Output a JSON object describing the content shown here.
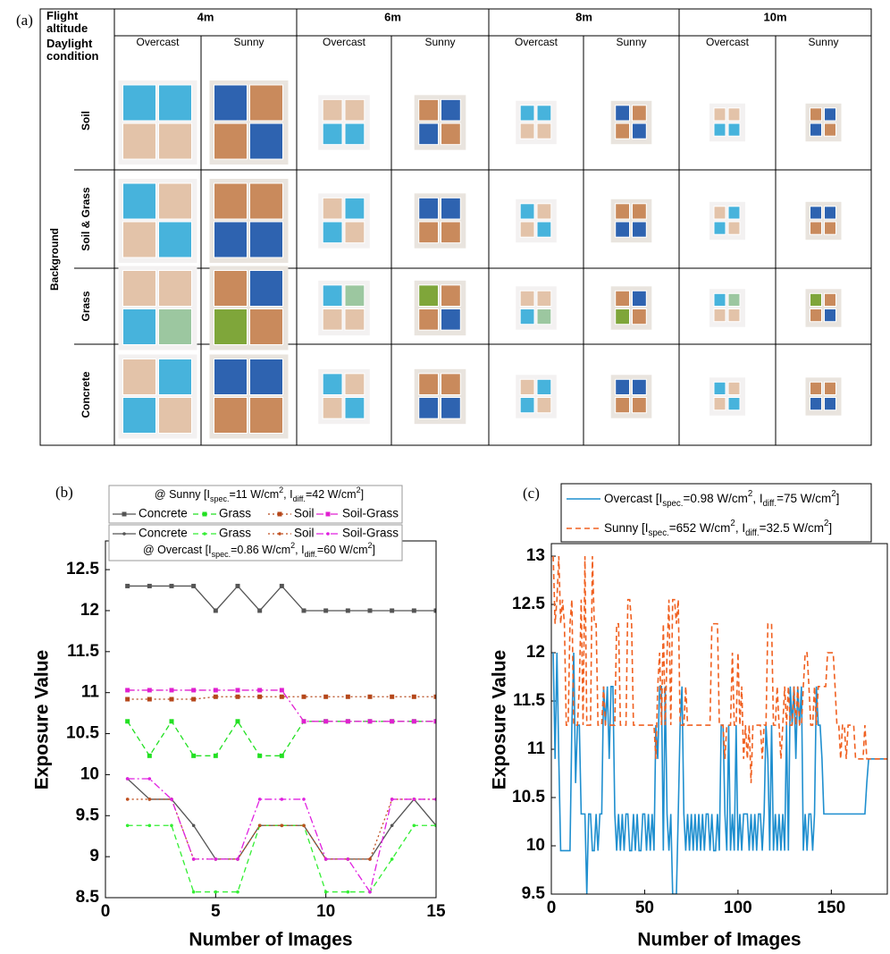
{
  "table": {
    "panel_label": "(a)",
    "altitude_header": "Flight altitude",
    "altitudes": [
      "4m",
      "6m",
      "8m",
      "10m"
    ],
    "condition_header": "Daylight condition",
    "conditions": [
      "Overcast",
      "Sunny",
      "Overcast",
      "Sunny",
      "Overcast",
      "Sunny",
      "Overcast",
      "Sunny"
    ],
    "background_label": "Background",
    "backgrounds": [
      "Soil",
      "Soil & Grass",
      "Grass",
      "Concrete"
    ]
  },
  "chart_data": [
    {
      "type": "line",
      "panel_label": "(b)",
      "x_label": "Number of Images",
      "y_label": "Exposure Value",
      "xlim": [
        0,
        15
      ],
      "xticks": [
        0,
        5,
        10,
        15
      ],
      "ylim": [
        8.5,
        12.85
      ],
      "yticks": [
        8.5,
        9,
        9.5,
        10,
        10.5,
        11,
        11.5,
        12,
        12.5
      ],
      "x": [
        1,
        2,
        3,
        4,
        5,
        6,
        7,
        8,
        9,
        10,
        11,
        12,
        13,
        14,
        15
      ],
      "series_groups": [
        {
          "title": [
            "@ Sunny [I",
            "spec.",
            "=11 W/cm",
            "2",
            ", I",
            "diff.",
            "=42 W/cm",
            "2",
            "]"
          ],
          "series": [
            {
              "name": "Concrete",
              "color": "#555555",
              "dash": "solid",
              "marker": "square",
              "values": [
                12.3,
                12.3,
                12.3,
                12.3,
                12,
                12.3,
                12,
                12.3,
                12,
                12,
                12,
                12,
                12,
                12,
                12
              ]
            },
            {
              "name": "Grass",
              "color": "#22e022",
              "dash": "dashed",
              "marker": "square",
              "values": [
                10.65,
                10.23,
                10.65,
                10.23,
                10.23,
                10.65,
                10.23,
                10.23,
                10.65,
                10.65,
                10.65,
                10.65,
                10.65,
                10.65,
                10.65
              ]
            },
            {
              "name": "Soil",
              "color": "#b5471a",
              "dash": "dotted",
              "marker": "square",
              "values": [
                10.92,
                10.92,
                10.92,
                10.92,
                10.95,
                10.95,
                10.95,
                10.95,
                10.95,
                10.95,
                10.95,
                10.95,
                10.95,
                10.95,
                10.95
              ]
            },
            {
              "name": "Soil-Grass",
              "color": "#e020d0",
              "dash": "dashdot",
              "marker": "square",
              "values": [
                11.03,
                11.03,
                11.03,
                11.03,
                11.03,
                11.03,
                11.03,
                11.03,
                10.65,
                10.65,
                10.65,
                10.65,
                10.65,
                10.65,
                10.65
              ]
            }
          ]
        },
        {
          "title": [
            "@ Overcast [I",
            "spec.",
            "=0.86 W/cm",
            "2",
            ", I",
            "diff.",
            "=60 W/cm",
            "2",
            "]"
          ],
          "series": [
            {
              "name": "Concrete",
              "color": "#555555",
              "dash": "solid",
              "marker": "dot",
              "values": [
                9.95,
                9.7,
                9.7,
                9.38,
                8.97,
                8.97,
                9.38,
                9.38,
                9.38,
                8.97,
                8.97,
                8.97,
                9.38,
                9.7,
                9.38
              ]
            },
            {
              "name": "Grass",
              "color": "#33ee33",
              "dash": "dashed",
              "marker": "dot",
              "values": [
                9.38,
                9.38,
                9.38,
                8.57,
                8.57,
                8.57,
                9.38,
                9.38,
                9.38,
                8.57,
                8.57,
                8.57,
                8.97,
                9.38,
                9.38
              ]
            },
            {
              "name": "Soil",
              "color": "#c05020",
              "dash": "dotted",
              "marker": "dot",
              "values": [
                9.7,
                9.7,
                9.7,
                8.97,
                8.97,
                8.97,
                9.38,
                9.38,
                9.38,
                8.97,
                8.97,
                8.97,
                9.7,
                9.7,
                9.7
              ]
            },
            {
              "name": "Soil-Grass",
              "color": "#e020e0",
              "dash": "dashdot",
              "marker": "dot",
              "values": [
                9.95,
                9.95,
                9.7,
                8.97,
                8.97,
                8.97,
                9.7,
                9.7,
                9.7,
                8.97,
                8.97,
                8.57,
                9.7,
                9.7,
                9.7
              ]
            }
          ]
        }
      ]
    },
    {
      "type": "line",
      "panel_label": "(c)",
      "x_label": "Number of Images",
      "y_label": "Exposure Value",
      "xlim": [
        0,
        180
      ],
      "xticks": [
        0,
        50,
        100,
        150
      ],
      "ylim": [
        9.5,
        13.13
      ],
      "yticks": [
        9.5,
        10,
        10.5,
        11,
        11.5,
        12,
        12.5,
        13
      ],
      "x": [
        1,
        2,
        3,
        4,
        5,
        6,
        7,
        8,
        9,
        10,
        11,
        12,
        13,
        14,
        15,
        16,
        17,
        18,
        19,
        20,
        21,
        22,
        23,
        24,
        25,
        26,
        27,
        28,
        29,
        30,
        31,
        32,
        33,
        34,
        35,
        36,
        37,
        38,
        39,
        40,
        41,
        42,
        43,
        44,
        45,
        46,
        47,
        48,
        49,
        50,
        51,
        52,
        53,
        54,
        55,
        56,
        57,
        58,
        59,
        60,
        61,
        62,
        63,
        64,
        65,
        66,
        67,
        68,
        69,
        70,
        71,
        72,
        73,
        74,
        75,
        76,
        77,
        78,
        79,
        80,
        81,
        82,
        83,
        84,
        85,
        86,
        87,
        88,
        89,
        90,
        91,
        92,
        93,
        94,
        95,
        96,
        97,
        98,
        99,
        100,
        101,
        102,
        103,
        104,
        105,
        106,
        107,
        108,
        109,
        110,
        111,
        112,
        113,
        114,
        115,
        116,
        117,
        118,
        119,
        120,
        121,
        122,
        123,
        124,
        125,
        126,
        127,
        128,
        129,
        130,
        131,
        132,
        133,
        134,
        135,
        136,
        137,
        138,
        139,
        140,
        141,
        142,
        143,
        144,
        145,
        146,
        147,
        148,
        149,
        150,
        151,
        152,
        153,
        154,
        155,
        156,
        157,
        158,
        159,
        160,
        161,
        162,
        163,
        164,
        165,
        166,
        167,
        168,
        169,
        170,
        171,
        172,
        173,
        174,
        175,
        176,
        177,
        178,
        179,
        180
      ],
      "series_groups": [
        {
          "series": [
            {
              "name": [
                "Overcast [I",
                "spec.",
                "=0.98 W/cm",
                "2",
                ", I",
                "diff.",
                "=75 W/cm",
                "2",
                "]"
              ],
              "color": "#1f8fcf",
              "dash": "solid",
              "values": [
                12,
                10.9,
                12,
                10.9,
                9.95,
                9.95,
                9.95,
                9.95,
                9.95,
                9.95,
                11.25,
                12,
                10.65,
                11.25,
                11.25,
                10.33,
                10.33,
                10.33,
                9.5,
                10.33,
                10.33,
                9.95,
                9.95,
                10.33,
                9.95,
                10.33,
                10.33,
                11.65,
                11.25,
                11.65,
                10.9,
                11.65,
                11.65,
                10.33,
                9.95,
                10.33,
                9.95,
                10.33,
                9.95,
                10.33,
                10.33,
                9.95,
                9.95,
                10.33,
                9.95,
                10.33,
                9.95,
                9.95,
                10.33,
                10.33,
                9.95,
                10.33,
                9.95,
                10.33,
                9.95,
                11.25,
                10.9,
                11.65,
                11.65,
                9.95,
                11.65,
                10.33,
                9.95,
                10.33,
                9.5,
                9.5,
                9.5,
                10.33,
                11.25,
                11.65,
                10.33,
                9.95,
                10.33,
                9.95,
                10.33,
                9.95,
                10.33,
                9.95,
                10.33,
                9.95,
                10.33,
                9.95,
                10.33,
                10.33,
                9.95,
                10.33,
                9.95,
                9.95,
                10.33,
                9.95,
                11.25,
                11.25,
                10.33,
                9.95,
                11.25,
                9.95,
                10.33,
                9.95,
                11.25,
                9.95,
                10.33,
                9.95,
                10.33,
                10.33,
                10.33,
                9.95,
                10.33,
                9.95,
                10.33,
                9.95,
                10.33,
                10.33,
                9.95,
                10.33,
                11.25,
                10.9,
                9.95,
                11.25,
                9.95,
                10.33,
                9.95,
                10.33,
                9.95,
                10.33,
                9.95,
                11.25,
                9.95,
                11.65,
                11.25,
                11.65,
                10.9,
                11.65,
                11.25,
                11.65,
                9.95,
                10.33,
                9.95,
                10.33,
                10.33,
                9.95,
                10.33,
                11.65,
                11.25,
                11.25,
                10.9,
                10.33,
                10.33,
                10.33,
                10.33,
                10.33,
                10.33,
                10.33,
                10.33,
                10.33,
                10.33,
                10.33,
                10.33,
                10.33,
                10.33,
                10.33,
                10.33,
                10.33,
                10.33,
                10.33,
                10.33,
                10.33,
                10.33,
                10.33,
                10.65,
                10.9,
                10.9,
                10.9,
                10.9,
                10.9,
                10.9,
                10.9,
                10.9,
                10.9,
                10.9,
                10.9
              ]
            },
            {
              "name": [
                "Sunny [I",
                "spec.",
                "=652 W/cm",
                "2",
                ", I",
                "diff.",
                "=32.5 W/cm",
                "2",
                "]"
              ],
              "color": "#f06020",
              "dash": "dashed",
              "values": [
                13,
                12.3,
                12.55,
                13,
                12.3,
                12.55,
                12.3,
                11.25,
                11.25,
                12.3,
                12.55,
                11.25,
                11.25,
                11.25,
                11.65,
                12.55,
                11.25,
                13,
                11.25,
                11.25,
                11.25,
                13,
                12.3,
                12.3,
                11.25,
                11.25,
                11.25,
                11.65,
                11.25,
                11.25,
                11.25,
                11.25,
                11.25,
                11.25,
                12.3,
                12.3,
                11.25,
                11.25,
                11.25,
                11.25,
                12.55,
                12.55,
                12.3,
                11.25,
                11.25,
                11.25,
                11.25,
                11.25,
                11.25,
                11.25,
                11.25,
                11.25,
                11.25,
                11.25,
                11.25,
                10.9,
                11.65,
                12,
                11.25,
                12.3,
                11.25,
                12,
                12.55,
                11.25,
                12.55,
                12.55,
                12.3,
                12.55,
                11.25,
                11.25,
                11.25,
                11.65,
                11.25,
                11.25,
                11.25,
                11.25,
                11.25,
                11.25,
                11.25,
                11.25,
                11.25,
                11.25,
                11.25,
                11.25,
                11.25,
                12.3,
                12.3,
                12.3,
                12.3,
                11.25,
                11.25,
                11.25,
                10.9,
                11.25,
                11.25,
                11.25,
                12,
                11.25,
                11.25,
                12,
                11.25,
                11.65,
                10.9,
                11.25,
                10.9,
                11.25,
                10.65,
                11.25,
                11.25,
                11.25,
                11.25,
                11.25,
                10.9,
                11.25,
                11.25,
                12.3,
                12.3,
                12.3,
                11.25,
                11.25,
                11.65,
                11.25,
                10.9,
                11.25,
                11.65,
                11.25,
                11.65,
                11.25,
                11.25,
                11.65,
                11.25,
                11.65,
                11.25,
                11.25,
                11.65,
                12,
                12,
                11.65,
                11.25,
                11.25,
                11.65,
                11.25,
                11.65,
                11.65,
                11.65,
                11.65,
                11.65,
                12,
                12,
                12,
                12,
                11.65,
                11.25,
                11.25,
                10.9,
                11.25,
                11.25,
                10.9,
                11.25,
                11.25,
                11.25,
                11.25,
                10.9,
                10.9,
                10.9,
                10.9,
                10.9,
                11.25,
                10.9,
                10.9,
                10.9,
                10.9,
                10.9,
                10.9,
                10.9,
                10.9,
                10.9,
                10.9,
                10.9,
                10.9
              ]
            }
          ]
        }
      ]
    }
  ]
}
